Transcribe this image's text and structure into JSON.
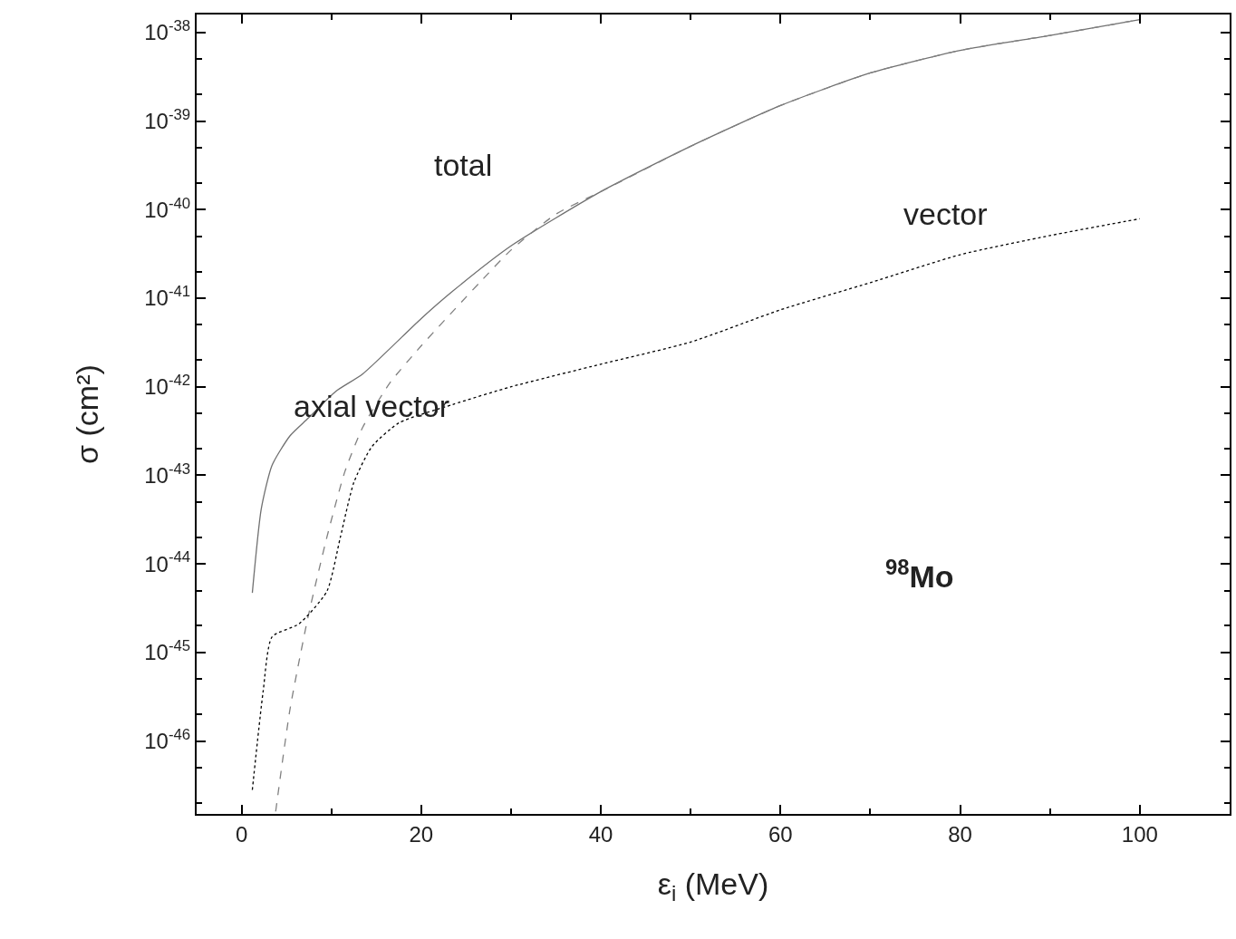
{
  "chart_data": {
    "type": "line",
    "xlabel": "ε$_{i}$ (MeV)",
    "ylabel": "σ (cm²)",
    "log": "y",
    "marker": "none",
    "xlim": [
      -5,
      110
    ],
    "xticks": [
      0,
      20,
      40,
      60,
      80,
      100
    ],
    "ylim": [
      1.5e-47,
      1.6e-38
    ],
    "yticks": [
      {
        "value": 1e-38,
        "label": "10$^{-38}$"
      },
      {
        "value": 1e-39,
        "label": "10$^{-39}$"
      },
      {
        "value": 1e-40,
        "label": "10$^{-40}$"
      },
      {
        "value": 1e-41,
        "label": "10$^{-41}$"
      },
      {
        "value": 1e-42,
        "label": "10$^{-42}$"
      },
      {
        "value": 1e-43,
        "label": "10$^{-43}$"
      },
      {
        "value": 1e-44,
        "label": "10$^{-44}$"
      },
      {
        "value": 1e-45,
        "label": "10$^{-45}$"
      },
      {
        "value": 1e-46,
        "label": "10$^{-46}$"
      }
    ],
    "series": [
      {
        "color": "#707070",
        "line_style": "solid",
        "x": [
          1.2,
          2.2,
          3.4,
          5.4,
          7.4,
          10.5,
          13.5,
          20,
          23.5,
          30,
          40,
          50,
          60,
          70,
          80,
          90,
          100
        ],
        "values": [
          4.7e-45,
          4.2e-44,
          1.3e-43,
          2.8e-43,
          4.4e-43,
          8.9e-43,
          1.4e-42,
          5.9e-42,
          1.2e-41,
          3.9e-41,
          1.6e-40,
          5.2e-40,
          1.5e-39,
          3.5e-39,
          6.3e-39,
          9.3e-39,
          1.4e-38
        ]
      },
      {
        "color": "#808080",
        "line_style": "dashed",
        "x": [
          3.8,
          5.4,
          7.4,
          9.5,
          11.5,
          13.5,
          16.5,
          20,
          26.5,
          30,
          35,
          40,
          50,
          60,
          70,
          80,
          90,
          100
        ],
        "values": [
          1.6e-47,
          2.3e-46,
          2.5e-45,
          2e-44,
          1.1e-43,
          3.5e-43,
          1.1e-42,
          2.9e-42,
          1.5e-41,
          3.5e-41,
          8.9e-41,
          1.6e-40,
          5.2e-40,
          1.5e-39,
          3.5e-39,
          6.3e-39,
          9.3e-39,
          1.4e-38
        ]
      },
      {
        "color": "#000000",
        "line_style": "dotted",
        "x": [
          1.2,
          2.4,
          3.4,
          6.4,
          9.5,
          11,
          12.5,
          14.5,
          17.5,
          23.5,
          30,
          40,
          50,
          60,
          70,
          80,
          90,
          100
        ],
        "values": [
          2.8e-47,
          3.6e-46,
          1.5e-45,
          2.1e-45,
          4.9e-45,
          2e-44,
          8.3e-44,
          2.1e-43,
          3.9e-43,
          6.3e-43,
          1e-42,
          1.8e-42,
          3.2e-42,
          7.4e-42,
          1.5e-41,
          3.1e-41,
          5.1e-41,
          7.9e-41
        ]
      }
    ],
    "annotations": [
      "total",
      "axial vector",
      "vector",
      "$^{98}$Mo"
    ]
  }
}
